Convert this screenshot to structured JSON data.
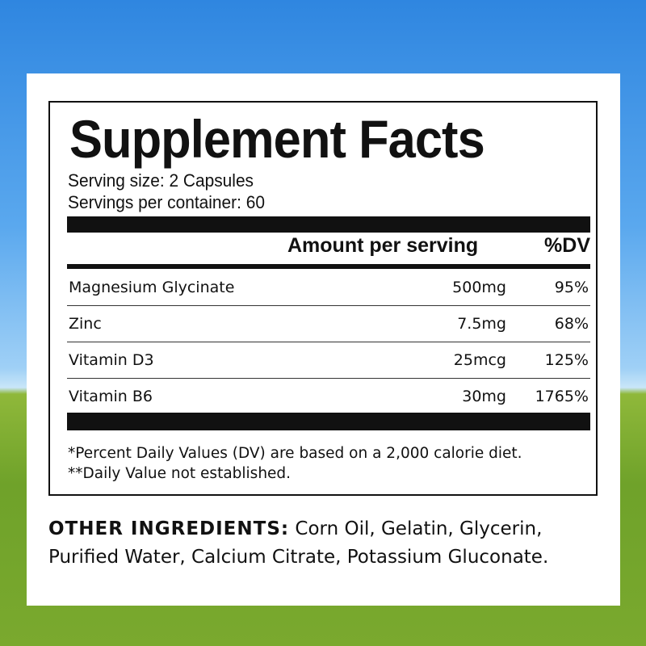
{
  "title": "Supplement Facts",
  "serving_size": "Serving size: 2 Capsules",
  "servings_per_container": "Servings per container: 60",
  "header": {
    "amount": "Amount per serving",
    "dv": "%DV"
  },
  "rows": [
    {
      "name": "Magnesium Glycinate",
      "amount": "500mg",
      "dv": "95%"
    },
    {
      "name": "Zinc",
      "amount": "7.5mg",
      "dv": "68%"
    },
    {
      "name": "Vitamin D3",
      "amount": "25mcg",
      "dv": "125%"
    },
    {
      "name": "Vitamin B6",
      "amount": "30mg",
      "dv": "1765%"
    }
  ],
  "footnotes": [
    "*Percent Daily Values (DV) are based on a 2,000 calorie diet.",
    "**Daily Value not established."
  ],
  "other_ingredients": {
    "label": "OTHER INGREDIENTS:",
    "line1": "Corn Oil, Gelatin, Glycerin,",
    "line2": "Purified Water, Calcium Citrate, Potassium Gluconate."
  }
}
